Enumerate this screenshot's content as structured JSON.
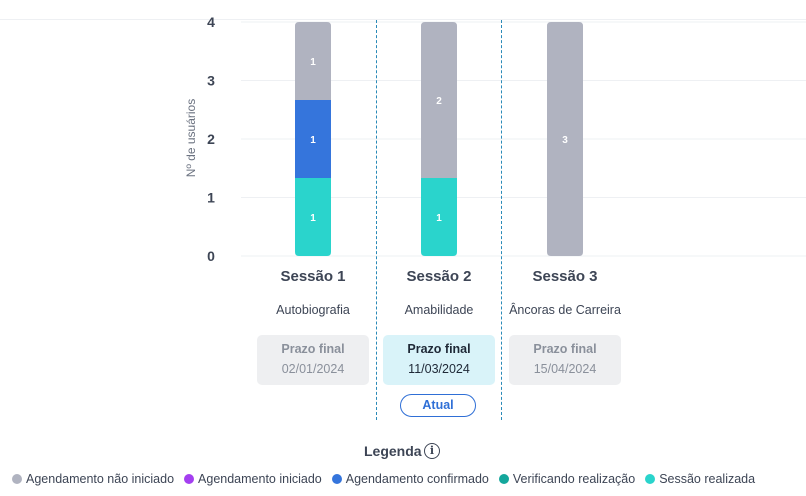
{
  "chart_data": {
    "type": "bar",
    "stacked": true,
    "ylabel": "Nº de usuários",
    "ylim": [
      0,
      4
    ],
    "yticks": [
      0,
      1,
      2,
      3,
      4
    ],
    "categories": [
      "Sessão 1",
      "Sessão 2",
      "Sessão 3"
    ],
    "series": [
      {
        "name": "Sessão realizada",
        "color": "#2ad4cc",
        "values": [
          1,
          1,
          0
        ]
      },
      {
        "name": "Agendamento confirmado",
        "color": "#3575dc",
        "values": [
          1,
          0,
          0
        ]
      },
      {
        "name": "Agendamento não iniciado",
        "color": "#b0b3c0",
        "values": [
          1,
          2,
          3
        ]
      }
    ],
    "legend_position": "bottom"
  },
  "sessions": [
    {
      "title": "Sessão 1",
      "subtitle": "Autobiografia",
      "deadline_label": "Prazo final",
      "deadline_date": "02/01/2024",
      "current": false
    },
    {
      "title": "Sessão 2",
      "subtitle": "Amabilidade",
      "deadline_label": "Prazo final",
      "deadline_date": "11/03/2024",
      "current": true
    },
    {
      "title": "Sessão 3",
      "subtitle": "Âncoras de Carreira",
      "deadline_label": "Prazo final",
      "deadline_date": "15/04/2024",
      "current": false
    }
  ],
  "current_badge": "Atual",
  "legend": {
    "title": "Legenda",
    "info_icon": "info-icon",
    "items": [
      {
        "label": "Agendamento não iniciado",
        "color": "#b0b3c0"
      },
      {
        "label": "Agendamento iniciado",
        "color": "#a43ff0"
      },
      {
        "label": "Agendamento confirmado",
        "color": "#3575dc"
      },
      {
        "label": "Verificando realização",
        "color": "#14a79c"
      },
      {
        "label": "Sessão realizada",
        "color": "#2ad4cc"
      }
    ]
  }
}
